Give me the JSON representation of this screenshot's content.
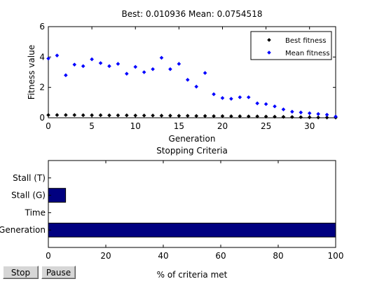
{
  "chart_data": [
    {
      "type": "scatter",
      "title": "Best: 0.010936 Mean: 0.0754518",
      "xlabel": "Generation",
      "ylabel": "Fitness value",
      "xlim": [
        0,
        33
      ],
      "ylim": [
        0,
        6
      ],
      "xticks": [
        0,
        5,
        10,
        15,
        20,
        25,
        30
      ],
      "yticks": [
        0,
        2,
        4,
        6
      ],
      "grid": false,
      "legend_position": "top-right",
      "series": [
        {
          "name": "Best fitness",
          "color": "#000000",
          "marker": "diamond",
          "x": [
            0,
            1,
            2,
            3,
            4,
            5,
            6,
            7,
            8,
            9,
            10,
            11,
            12,
            13,
            14,
            15,
            16,
            17,
            18,
            19,
            20,
            21,
            22,
            23,
            24,
            25,
            26,
            27,
            28,
            29,
            30,
            31,
            32,
            33
          ],
          "y": [
            0.18,
            0.18,
            0.18,
            0.18,
            0.17,
            0.17,
            0.17,
            0.16,
            0.16,
            0.16,
            0.15,
            0.15,
            0.15,
            0.14,
            0.14,
            0.13,
            0.13,
            0.12,
            0.12,
            0.11,
            0.11,
            0.1,
            0.1,
            0.09,
            0.09,
            0.08,
            0.07,
            0.06,
            0.05,
            0.04,
            0.03,
            0.02,
            0.015,
            0.011
          ]
        },
        {
          "name": "Mean fitness",
          "color": "#0000ff",
          "marker": "diamond",
          "x": [
            0,
            1,
            2,
            3,
            4,
            5,
            6,
            7,
            8,
            9,
            10,
            11,
            12,
            13,
            14,
            15,
            16,
            17,
            18,
            19,
            20,
            21,
            22,
            23,
            24,
            25,
            26,
            27,
            28,
            29,
            30,
            31,
            32,
            33
          ],
          "y": [
            3.9,
            4.1,
            2.8,
            3.5,
            3.4,
            3.85,
            3.6,
            3.4,
            3.55,
            2.9,
            3.35,
            3.0,
            3.2,
            3.95,
            3.2,
            3.55,
            2.5,
            2.05,
            2.95,
            1.55,
            1.3,
            1.25,
            1.35,
            1.35,
            0.95,
            0.9,
            0.75,
            0.55,
            0.4,
            0.35,
            0.3,
            0.25,
            0.2,
            0.08
          ]
        }
      ]
    },
    {
      "type": "bar",
      "orientation": "horizontal",
      "title": "Stopping Criteria",
      "xlabel": "% of criteria met",
      "ylabel": "",
      "xlim": [
        0,
        100
      ],
      "xticks": [
        0,
        20,
        40,
        60,
        80,
        100
      ],
      "categories": [
        "Generation",
        "Time",
        "Stall (G)",
        "Stall (T)"
      ],
      "values": [
        100,
        0,
        6,
        0
      ],
      "color": "#000080"
    }
  ],
  "controls": {
    "stop_label": "Stop",
    "pause_label": "Pause"
  }
}
